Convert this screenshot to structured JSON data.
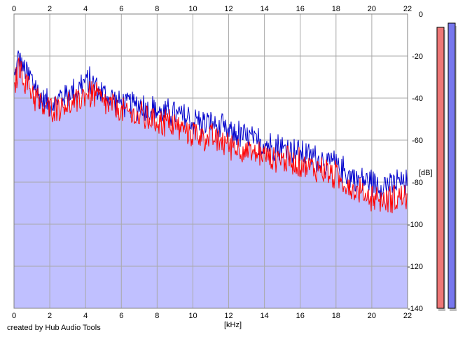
{
  "footer": {
    "credit": "created by Hub Audio Tools"
  },
  "chart_data": {
    "type": "area",
    "xlabel": "[kHz]",
    "ylabel": "[dB]",
    "xlim": [
      0,
      22
    ],
    "ylim": [
      -140,
      0
    ],
    "x_ticks": [
      0,
      2,
      4,
      6,
      8,
      10,
      12,
      14,
      16,
      18,
      20,
      22
    ],
    "y_ticks": [
      0,
      -20,
      -40,
      -60,
      -80,
      -100,
      -120,
      -140
    ],
    "y_tick_labels": [
      "0",
      "-20",
      "-40",
      "-60",
      "-80",
      "-100",
      "-120",
      "-140"
    ],
    "grid": true,
    "colors": {
      "fill": "#c0c0ff",
      "grid": "#a9a9a9",
      "series_red": "#ff0000",
      "series_blue": "#0000cc",
      "meter_red": "#ee7777",
      "meter_blue": "#7777ee"
    },
    "series": [
      {
        "color": "#0000cc",
        "x": [
          0,
          0.3,
          0.5,
          1,
          1.5,
          2,
          2.5,
          3,
          3.5,
          4,
          4.5,
          5,
          6,
          7,
          8,
          9,
          10,
          11,
          12,
          13,
          14,
          15,
          16,
          17,
          18,
          19,
          20,
          20.5,
          21,
          21.5,
          22
        ],
        "values": [
          -28,
          -18,
          -24,
          -30,
          -38,
          -40,
          -38,
          -36,
          -34,
          -30,
          -31,
          -36,
          -40,
          -42,
          -44,
          -46,
          -49,
          -50,
          -54,
          -57,
          -60,
          -62,
          -64,
          -67,
          -70,
          -76,
          -78,
          -79,
          -80,
          -78,
          -79
        ]
      },
      {
        "color": "#ff0000",
        "x": [
          0,
          0.3,
          0.5,
          1,
          1.5,
          2,
          2.5,
          3,
          3.5,
          4,
          4.5,
          5,
          6,
          7,
          8,
          9,
          10,
          11,
          12,
          13,
          14,
          15,
          16,
          17,
          18,
          19,
          20,
          20.5,
          21,
          21.5,
          22
        ],
        "values": [
          -35,
          -22,
          -28,
          -35,
          -42,
          -43,
          -42,
          -41,
          -40,
          -36,
          -37,
          -40,
          -44,
          -47,
          -49,
          -51,
          -55,
          -57,
          -60,
          -63,
          -65,
          -67,
          -69,
          -72,
          -75,
          -81,
          -85,
          -86,
          -86,
          -85,
          -86
        ]
      }
    ],
    "meters": [
      {
        "color": "#ee7777",
        "value": -3
      },
      {
        "color": "#7777ee",
        "value": -1
      }
    ]
  }
}
